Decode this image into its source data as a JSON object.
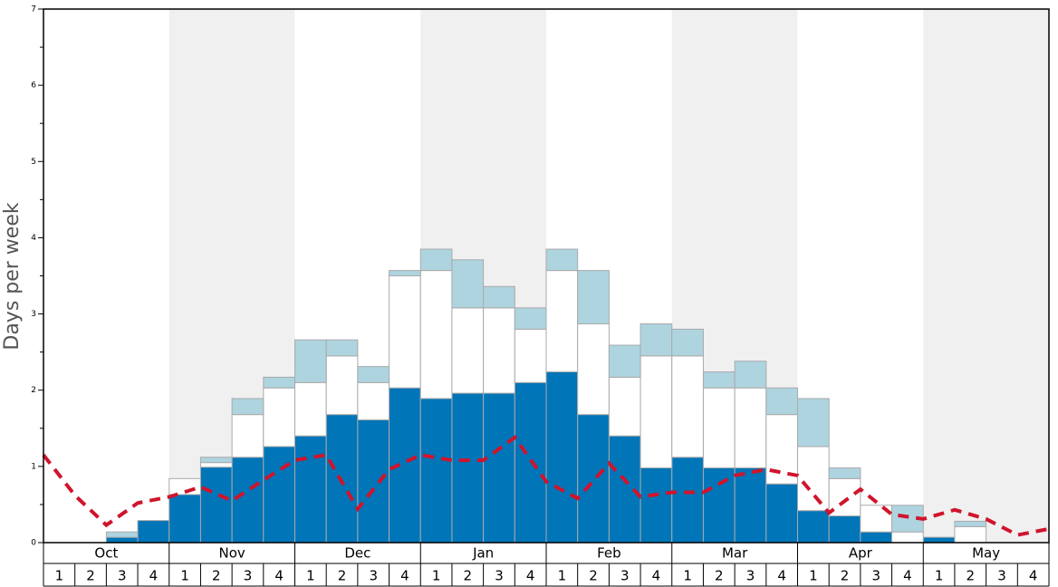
{
  "chart_data": {
    "type": "stacked-bar",
    "y_label": "Days per week",
    "groups": [
      "Oct",
      "Nov",
      "Dec",
      "Jan",
      "Feb",
      "Mar",
      "Apr",
      "May"
    ],
    "categories": [
      "1",
      "2",
      "3",
      "4",
      "1",
      "2",
      "3",
      "4",
      "1",
      "2",
      "3",
      "4",
      "1",
      "2",
      "3",
      "4",
      "1",
      "2",
      "3",
      "4",
      "1",
      "2",
      "3",
      "4",
      "1",
      "2",
      "3",
      "4",
      "1",
      "2",
      "3",
      "4"
    ],
    "series": [
      {
        "color": "#0075b8",
        "values": [
          0,
          0,
          0.07,
          0.29,
          0.63,
          0.99,
          1.12,
          1.26,
          1.4,
          1.68,
          1.61,
          2.03,
          1.89,
          1.96,
          1.96,
          2.1,
          2.24,
          1.68,
          1.4,
          0.98,
          1.12,
          0.98,
          0.98,
          0.77,
          0.42,
          0.35,
          0.14,
          0,
          0.07,
          0,
          0,
          0
        ]
      },
      {
        "color": "#ffffff",
        "values": [
          0,
          0,
          0,
          0,
          0.21,
          0.06,
          0.56,
          0.77,
          0.7,
          0.77,
          0.49,
          1.47,
          1.68,
          1.12,
          1.12,
          0.7,
          1.33,
          1.19,
          0.77,
          1.47,
          1.33,
          1.05,
          1.05,
          0.91,
          0.84,
          0.49,
          0.35,
          0.14,
          0,
          0.21,
          0,
          0
        ]
      },
      {
        "color": "#aed4e0",
        "values": [
          0,
          0,
          0.07,
          0,
          0,
          0.07,
          0.21,
          0.14,
          0.56,
          0.21,
          0.21,
          0.07,
          0.28,
          0.63,
          0.28,
          0.28,
          0.28,
          0.7,
          0.42,
          0.42,
          0.35,
          0.21,
          0.35,
          0.35,
          0.63,
          0.14,
          0,
          0.35,
          0,
          0.07,
          0,
          0
        ]
      }
    ],
    "line": {
      "color": "#d0142c",
      "dashed": true,
      "x": [
        0,
        1,
        2,
        3,
        4,
        5,
        6,
        7,
        8,
        9,
        10,
        11,
        12,
        13,
        14,
        15,
        16,
        17,
        18,
        19,
        20,
        21,
        22,
        23,
        24,
        25,
        26,
        27,
        28,
        29,
        30,
        31,
        32
      ],
      "values": [
        1.15,
        0.62,
        0.23,
        0.52,
        0.6,
        0.73,
        0.55,
        0.82,
        1.08,
        1.15,
        0.44,
        0.96,
        1.15,
        1.08,
        1.08,
        1.38,
        0.8,
        0.58,
        1.04,
        0.6,
        0.66,
        0.66,
        0.88,
        0.96,
        0.88,
        0.39,
        0.7,
        0.37,
        0.31,
        0.43,
        0.31,
        0.1,
        0.18
      ]
    },
    "xlim": [
      0,
      32
    ],
    "ylim": [
      0,
      7
    ],
    "yticks": [
      0,
      1,
      2,
      3,
      4,
      5,
      6,
      7
    ],
    "alternate_shading": true
  }
}
